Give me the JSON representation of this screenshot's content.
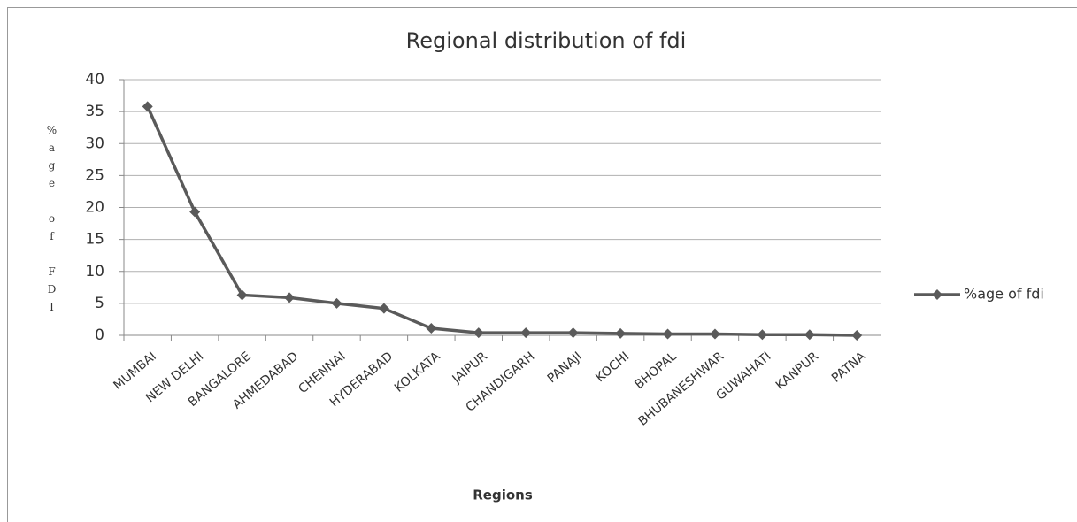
{
  "chart_data": {
    "type": "line",
    "title": "Regional distribution of fdi",
    "x_label": "Regions",
    "y_label": "%age of FDI",
    "categories": [
      "MUMBAI",
      "NEW DELHI",
      "BANGALORE",
      "AHMEDABAD",
      "CHENNAI",
      "HYDERABAD",
      "KOLKATA",
      "JAIPUR",
      "CHANDIGARH",
      "PANAJI",
      "KOCHI",
      "BHOPAL",
      "BHUBANESHWAR",
      "GUWAHATI",
      "KANPUR",
      "PATNA"
    ],
    "series": [
      {
        "name": "%age of fdi",
        "color": "#5a5a5a",
        "values": [
          35.8,
          19.3,
          6.3,
          5.9,
          5.0,
          4.2,
          1.1,
          0.4,
          0.4,
          0.4,
          0.3,
          0.2,
          0.2,
          0.1,
          0.1,
          0.0
        ]
      }
    ],
    "ylim": [
      0,
      40
    ],
    "yticks": [
      0,
      5,
      10,
      15,
      20,
      25,
      30,
      35,
      40
    ],
    "grid": true,
    "legend": "right"
  }
}
